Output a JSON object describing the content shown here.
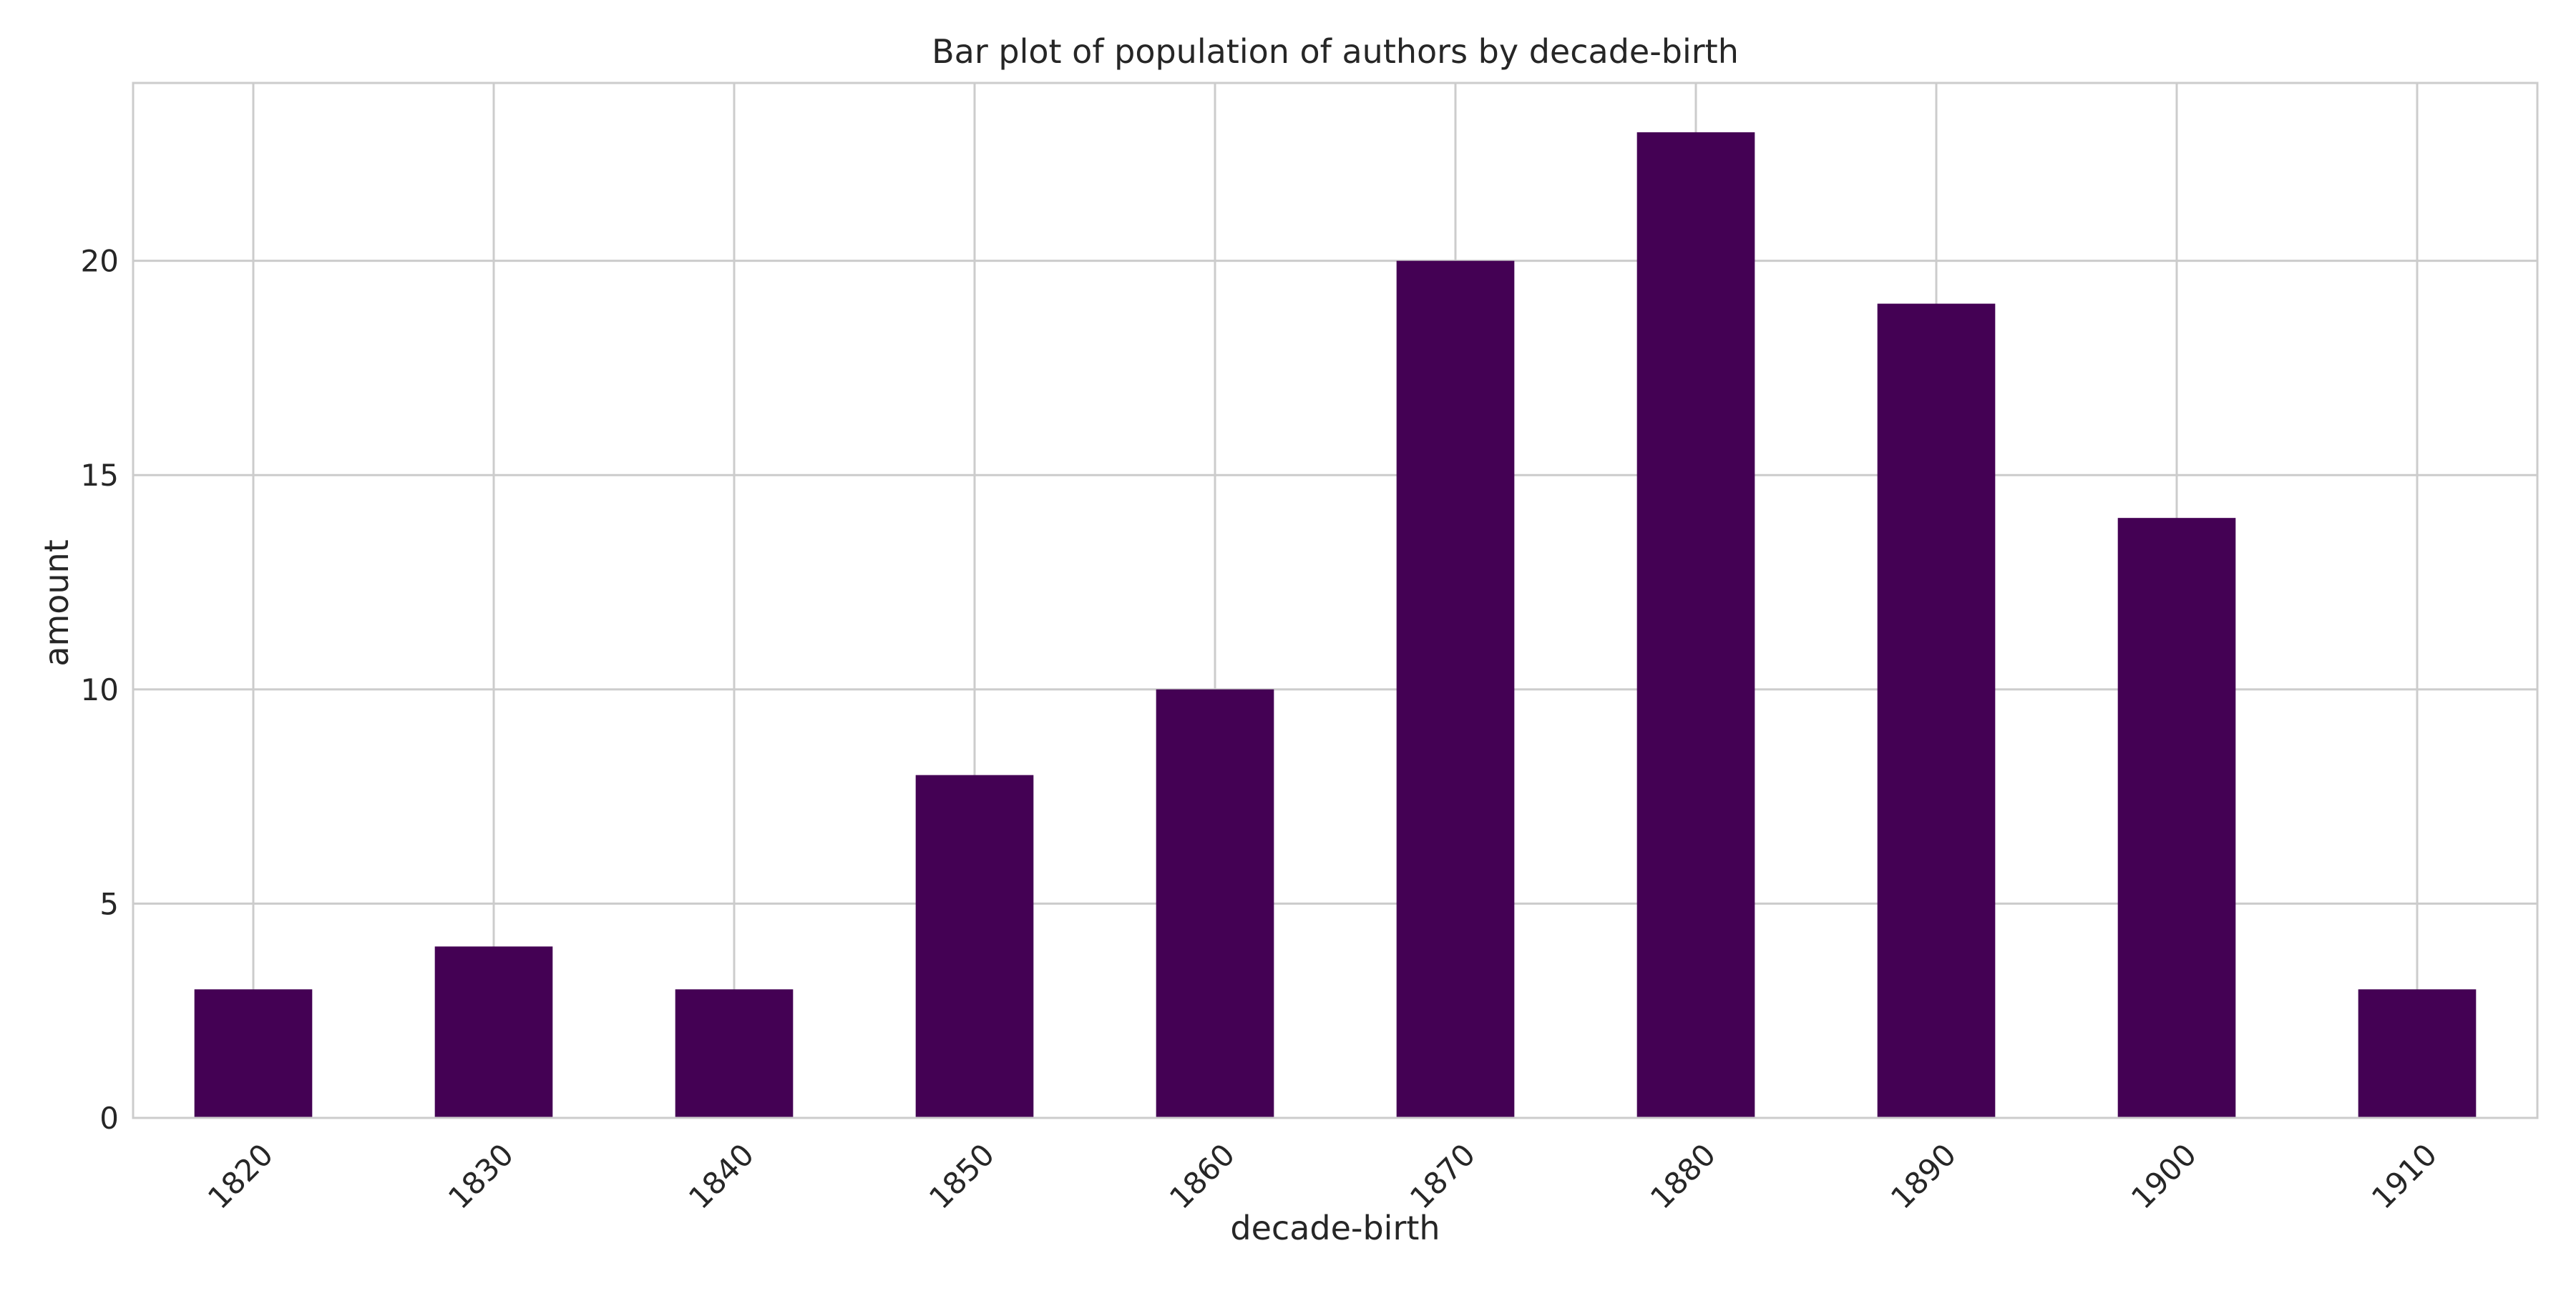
{
  "chart_data": {
    "type": "bar",
    "title": "Bar plot of population of authors by decade-birth",
    "xlabel": "decade-birth",
    "ylabel": "amount",
    "categories": [
      "1820",
      "1830",
      "1840",
      "1850",
      "1860",
      "1870",
      "1880",
      "1890",
      "1900",
      "1910"
    ],
    "values": [
      3,
      4,
      3,
      8,
      10,
      20,
      23,
      19,
      14,
      3
    ],
    "ylim": [
      0,
      24.15
    ],
    "yticks": [
      0,
      5,
      10,
      15,
      20
    ],
    "grid": true,
    "legend": "none",
    "colors": {
      "bar": "#440154",
      "grid": "#cccccc",
      "spine": "#cccccc",
      "text": "#262626",
      "background": "#ffffff"
    }
  }
}
